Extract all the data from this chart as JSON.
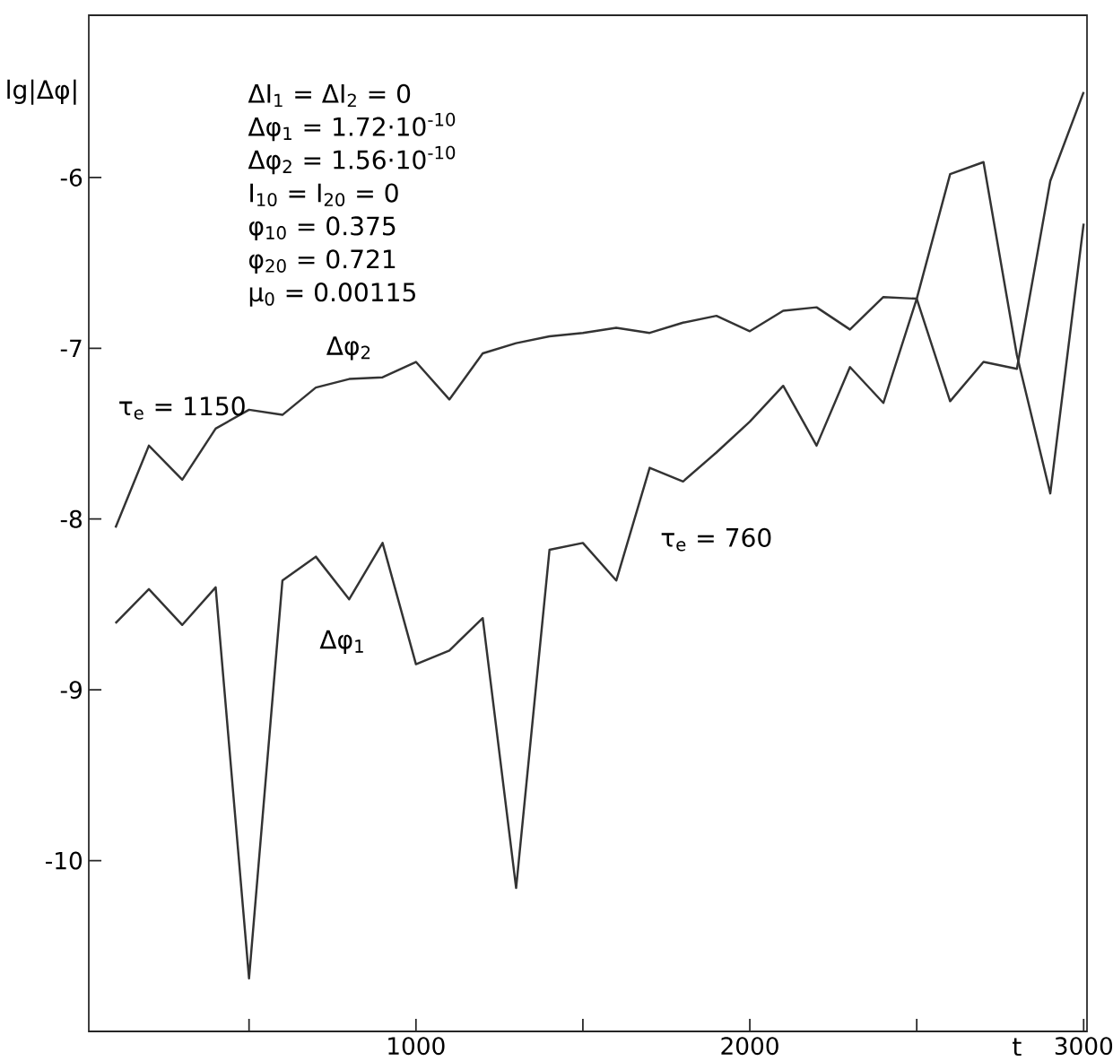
{
  "chart_data": {
    "type": "line",
    "xlabel": "t",
    "ylabel": "lg|Δφ|",
    "x": [
      100,
      200,
      300,
      400,
      500,
      600,
      700,
      800,
      900,
      1000,
      1100,
      1200,
      1300,
      1400,
      1500,
      1600,
      1700,
      1800,
      1900,
      2000,
      2100,
      2200,
      2300,
      2400,
      2500,
      2600,
      2700,
      2800,
      2900,
      3000
    ],
    "series": [
      {
        "name": "Δφ$_{2}$",
        "color": "#333333",
        "values": [
          -8.05,
          -7.57,
          -7.77,
          -7.47,
          -7.36,
          -7.39,
          -7.23,
          -7.18,
          -7.17,
          -7.08,
          -7.3,
          -7.03,
          -6.97,
          -6.93,
          -6.91,
          -6.88,
          -6.91,
          -6.85,
          -6.81,
          -6.9,
          -6.78,
          -6.76,
          -6.89,
          -6.7,
          -6.71,
          -7.31,
          -7.08,
          -7.12,
          -6.02,
          -5.5
        ]
      },
      {
        "name": "Δφ$_{1}$",
        "color": "#333333",
        "values": [
          -8.61,
          -8.41,
          -8.62,
          -8.4,
          -10.69,
          -8.36,
          -8.22,
          -8.47,
          -8.14,
          -8.85,
          -8.77,
          -8.58,
          -10.16,
          -8.18,
          -8.14,
          -8.36,
          -7.7,
          -7.78,
          -7.61,
          -7.43,
          -7.22,
          -7.57,
          -7.11,
          -7.32,
          -6.71,
          -5.98,
          -5.91,
          -7.04,
          -7.85,
          -6.27
        ]
      }
    ],
    "annotations": [
      "τ$_{e}$ = 1150",
      "τ$_{e}$ = 760",
      "ΔI$_{1}$ = ΔI$_{2}$ = 0",
      "Δφ$_{1}$ = 1.72·10$^{-10}$",
      "Δφ$_{2}$ = 1.56·10$^{-10}$",
      "I$_{10}$ = I$_{20}$ = 0",
      "φ$_{10}$ = 0.375",
      "φ$_{20}$ = 0.721",
      "μ$_{0}$ = 0.00115"
    ],
    "xlim": [
      20,
      3010
    ],
    "ylim": [
      -11,
      -5.05
    ],
    "xticks": [
      {
        "value": 500,
        "label": null
      },
      1000,
      {
        "value": 1500,
        "label": null
      },
      2000,
      {
        "value": 2500,
        "label": null
      },
      3000
    ],
    "yticks": [
      -10,
      -9,
      -8,
      -7,
      -6
    ],
    "grid": false,
    "legend": false,
    "marker": "none",
    "line_style": "solid"
  }
}
